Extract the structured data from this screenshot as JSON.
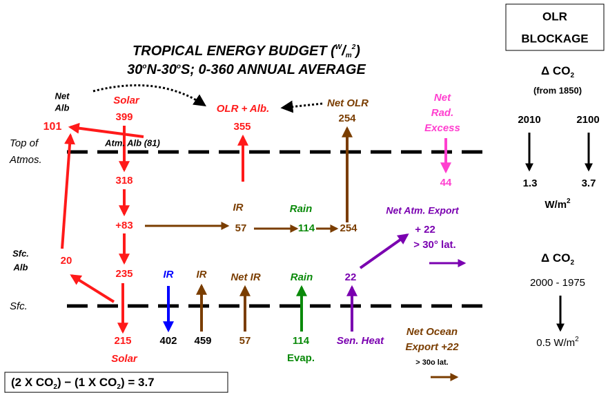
{
  "title": {
    "line1_a": "TROPICAL ENERGY BUDGET (",
    "unit_num": "W",
    "unit_slash": "/",
    "unit_den": "m",
    "unit_exp": "2",
    "line1_b": ")",
    "line2_a": "30",
    "deg_a": "o",
    "line2_b": "N-30",
    "deg_b": "o",
    "line2_c": "S; 0-360 ANNUAL AVERAGE"
  },
  "top": {
    "net_alb_1": "Net",
    "net_alb_2": "Alb",
    "solar": "Solar",
    "solar_value": "399",
    "olr_alb": "OLR + Alb.",
    "olr_alb_value": "355",
    "net_olr": "Net OLR",
    "net_olr_value": "254",
    "net_rad_1": "Net",
    "net_rad_2": "Rad.",
    "net_rad_3": "Excess",
    "net_rad_value": "44",
    "alb_value": "101",
    "atm_alb": "Atm. Alb (81)",
    "toa_1": "Top of",
    "toa_2": "Atmos."
  },
  "atmosphere": {
    "solar_in": "318",
    "plus": "+83",
    "ir": "IR",
    "ir_value": "57",
    "rain": "Rain",
    "rain_value": "114",
    "sum_value": "254",
    "export": "Net Atm. Export",
    "export_value": "+ 22",
    "export_lat": "> 30° lat."
  },
  "surface": {
    "sfc_alb_1": "Sfc.",
    "sfc_alb_2": "Alb",
    "sfc_alb_value": "20",
    "solar_abs": "235",
    "ir_down": "IR",
    "ir_up": "IR",
    "net_ir": "Net IR",
    "rain": "Rain",
    "sen_value": "22",
    "sfc": "Sfc.",
    "solar_sfc": "215",
    "solar": "Solar",
    "ir_down_value": "402",
    "ir_up_value": "459",
    "net_ir_value": "57",
    "evap_value": "114",
    "evap": "Evap.",
    "sen_heat": "Sen. Heat",
    "ocean_1": "Net Ocean",
    "ocean_2": "Export +22",
    "ocean_lat": "> 30o lat."
  },
  "formula": {
    "a": "(2 X CO",
    "a_sub": "2",
    "b": ") − (1 X CO",
    "b_sub": "2",
    "c": ") = 3.7"
  },
  "sidebar": {
    "title_1": "OLR",
    "title_2": "BLOCKAGE",
    "delta_1": "Δ CO",
    "delta_1_sub": "2",
    "from": "(from 1850)",
    "year_a": "2010",
    "year_b": "2100",
    "value_a": "1.3",
    "value_b": "3.7",
    "unit": "W/m",
    "unit_exp": "2",
    "delta_2": "Δ CO",
    "delta_2_sub": "2",
    "period": "2000 - 1975",
    "period_value": "0.5 W/m",
    "period_exp": "2"
  }
}
